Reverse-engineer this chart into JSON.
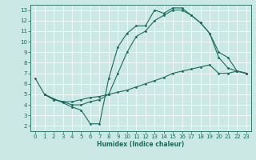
{
  "title": "",
  "xlabel": "Humidex (Indice chaleur)",
  "bg_color": "#cce8e4",
  "line_color": "#1a6b5e",
  "xlim": [
    -0.5,
    23.5
  ],
  "ylim": [
    1.5,
    13.5
  ],
  "xticks": [
    0,
    1,
    2,
    3,
    4,
    5,
    6,
    7,
    8,
    9,
    10,
    11,
    12,
    13,
    14,
    15,
    16,
    17,
    18,
    19,
    20,
    21,
    22,
    23
  ],
  "yticks": [
    2,
    3,
    4,
    5,
    6,
    7,
    8,
    9,
    10,
    11,
    12,
    13
  ],
  "line1": {
    "x": [
      0,
      1,
      3,
      4,
      5,
      6,
      7,
      8,
      9,
      10,
      11,
      12,
      13,
      14,
      15,
      16,
      17,
      18,
      19,
      20,
      21,
      22,
      23
    ],
    "y": [
      6.5,
      5.0,
      4.2,
      3.8,
      3.5,
      2.2,
      2.2,
      6.5,
      9.5,
      10.8,
      11.5,
      11.5,
      13.0,
      12.7,
      13.2,
      13.2,
      12.5,
      11.8,
      10.8,
      8.5,
      7.5,
      7.2,
      7.0
    ]
  },
  "line2": {
    "x": [
      1,
      2,
      3,
      4,
      5,
      6,
      7,
      8,
      9,
      10,
      11,
      12,
      13,
      14,
      15,
      16,
      17,
      18,
      19,
      20,
      21,
      22,
      23
    ],
    "y": [
      5.0,
      4.5,
      4.3,
      4.3,
      4.5,
      4.7,
      4.8,
      5.0,
      5.2,
      5.4,
      5.7,
      6.0,
      6.3,
      6.6,
      7.0,
      7.2,
      7.4,
      7.6,
      7.8,
      7.0,
      7.0,
      7.2,
      7.0
    ]
  },
  "line3": {
    "x": [
      1,
      2,
      3,
      4,
      5,
      6,
      7,
      8,
      9,
      10,
      11,
      12,
      13,
      14,
      15,
      16,
      17,
      18,
      19,
      20,
      21,
      22,
      23
    ],
    "y": [
      5.0,
      4.5,
      4.3,
      4.0,
      4.0,
      4.3,
      4.5,
      5.0,
      7.0,
      9.0,
      10.5,
      11.0,
      12.0,
      12.5,
      13.0,
      13.0,
      12.5,
      11.8,
      10.8,
      9.0,
      8.5,
      7.2,
      7.0
    ]
  }
}
